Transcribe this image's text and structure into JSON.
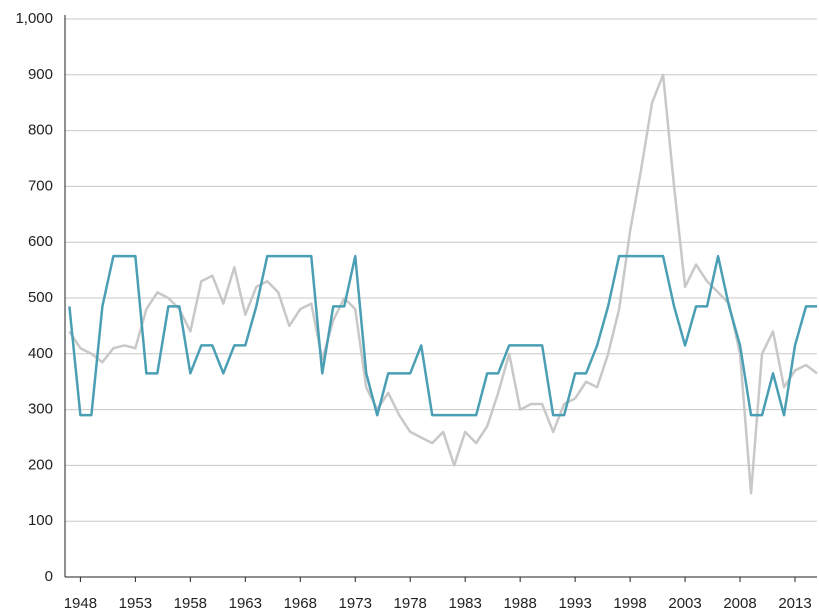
{
  "chart_data": {
    "type": "line",
    "x": [
      1947,
      1948,
      1949,
      1950,
      1951,
      1952,
      1953,
      1954,
      1955,
      1956,
      1957,
      1958,
      1959,
      1960,
      1961,
      1962,
      1963,
      1964,
      1965,
      1966,
      1967,
      1968,
      1969,
      1970,
      1971,
      1972,
      1973,
      1974,
      1975,
      1976,
      1977,
      1978,
      1979,
      1980,
      1981,
      1982,
      1983,
      1984,
      1985,
      1986,
      1987,
      1988,
      1989,
      1990,
      1991,
      1992,
      1993,
      1994,
      1995,
      1996,
      1997,
      1998,
      1999,
      2000,
      2001,
      2002,
      2003,
      2004,
      2005,
      2006,
      2007,
      2008,
      2009,
      2010,
      2011,
      2012,
      2013,
      2014,
      2015
    ],
    "series": [
      {
        "color": "#c8c8c8",
        "values": [
          440,
          410,
          400,
          385,
          410,
          415,
          410,
          480,
          510,
          500,
          480,
          440,
          530,
          540,
          490,
          555,
          470,
          520,
          530,
          510,
          450,
          480,
          490,
          390,
          460,
          500,
          480,
          340,
          300,
          330,
          290,
          260,
          250,
          240,
          260,
          200,
          260,
          240,
          270,
          330,
          400,
          300,
          310,
          310,
          260,
          310,
          320,
          350,
          340,
          400,
          480,
          620,
          730,
          850,
          900,
          700,
          520,
          560,
          530,
          510,
          490,
          400,
          150,
          400,
          440,
          340,
          370,
          380,
          365
        ]
      },
      {
        "color": "#4a9fb5",
        "values": [
          485,
          290,
          290,
          485,
          575,
          575,
          575,
          365,
          365,
          485,
          485,
          365,
          415,
          415,
          365,
          415,
          415,
          485,
          575,
          575,
          575,
          575,
          575,
          365,
          485,
          485,
          575,
          365,
          290,
          365,
          365,
          365,
          415,
          290,
          290,
          290,
          290,
          290,
          365,
          365,
          415,
          415,
          415,
          415,
          290,
          290,
          365,
          365,
          415,
          485,
          575,
          575,
          575,
          575,
          575,
          485,
          415,
          485,
          485,
          575,
          485,
          415,
          290,
          290,
          365,
          290,
          415,
          485,
          485
        ]
      }
    ],
    "xlim": [
      1946.6,
      2015
    ],
    "xticks": [
      1948,
      1953,
      1958,
      1963,
      1968,
      1973,
      1978,
      1983,
      1988,
      1993,
      1998,
      2003,
      2008,
      2013
    ],
    "ylim": [
      0,
      1000
    ],
    "yticks": [
      0,
      100,
      200,
      300,
      400,
      500,
      600,
      700,
      800,
      900,
      {
        "value": 1000,
        "label": "1,000"
      }
    ],
    "grid": true
  }
}
